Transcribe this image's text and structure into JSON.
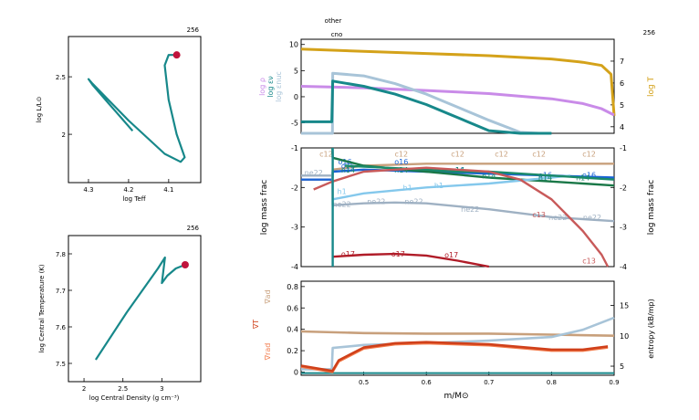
{
  "chart_data": [
    {
      "type": "line",
      "panel": "hr_diagram",
      "model_number": "256",
      "xlabel": "log Teff",
      "ylabel": "log L/L⊙",
      "xlim": [
        4.35,
        4.02
      ],
      "ylim": [
        1.58,
        2.85
      ],
      "x_ticks": [
        "4.3",
        "4.2",
        "4.1"
      ],
      "y_ticks": [
        "2",
        "2.5"
      ],
      "track_color": "#17888a",
      "marker_color": "#c0143c",
      "series": [
        {
          "x": [
            4.19,
            4.25,
            4.29,
            4.3,
            4.29,
            4.2,
            4.11,
            4.07,
            4.06,
            4.08,
            4.1,
            4.11,
            4.1,
            4.08
          ],
          "y": [
            2.03,
            2.27,
            2.43,
            2.48,
            2.44,
            2.12,
            1.83,
            1.76,
            1.8,
            2.0,
            2.3,
            2.6,
            2.69,
            2.69
          ]
        }
      ],
      "current_point": {
        "x": 4.08,
        "y": 2.69
      }
    },
    {
      "type": "line",
      "panel": "central_conditions",
      "model_number": "256",
      "xlabel": "log Central Density (g cm⁻³)",
      "ylabel": "log Central Temperature (K)",
      "xlim": [
        1.8,
        3.5
      ],
      "ylim": [
        7.45,
        7.85
      ],
      "x_ticks": [
        "2",
        "2.5",
        "3"
      ],
      "y_ticks": [
        "7.5",
        "7.6",
        "7.7",
        "7.8"
      ],
      "track_color": "#17888a",
      "marker_color": "#c0143c",
      "series": [
        {
          "x": [
            2.15,
            2.55,
            2.95,
            3.04,
            3.0,
            3.07,
            3.18,
            3.3
          ],
          "y": [
            7.51,
            7.64,
            7.76,
            7.79,
            7.72,
            7.74,
            7.76,
            7.77
          ]
        }
      ],
      "current_point": {
        "x": 3.3,
        "y": 7.77
      }
    },
    {
      "type": "line",
      "panel": "structure",
      "model_number": "256",
      "top_labels": [
        "other",
        "cno"
      ],
      "xlim": [
        0.4,
        0.9
      ],
      "ylim": [
        -7,
        11
      ],
      "y_ticks": [
        "-5",
        "0",
        "5",
        "10"
      ],
      "ylabel_left": [
        "log ρ",
        "log εν",
        "log εnuc"
      ],
      "ylabel_left_colors": [
        "#c98be8",
        "#17888a",
        "#a8c4d8"
      ],
      "y2lim": [
        3.7,
        8
      ],
      "y2_ticks": [
        "4",
        "5",
        "6",
        "7"
      ],
      "ylabel_right": "log T",
      "ylabel_right_color": "#d4a21a",
      "series": [
        {
          "name": "log T",
          "axis": "right",
          "color": "#d4a21a",
          "x": [
            0.4,
            0.5,
            0.6,
            0.7,
            0.8,
            0.85,
            0.88,
            0.895,
            0.9
          ],
          "y": [
            7.55,
            7.45,
            7.35,
            7.25,
            7.1,
            6.95,
            6.8,
            6.4,
            4.5
          ]
        },
        {
          "name": "log ρ",
          "axis": "left",
          "color": "#c98be8",
          "x": [
            0.4,
            0.5,
            0.6,
            0.7,
            0.8,
            0.85,
            0.88,
            0.9
          ],
          "y": [
            2.0,
            1.7,
            1.2,
            0.6,
            -0.4,
            -1.3,
            -2.3,
            -3.5
          ]
        },
        {
          "name": "log εnuc",
          "axis": "left",
          "color": "#a8c4d8",
          "x": [
            0.4,
            0.45,
            0.4505,
            0.5,
            0.55,
            0.6,
            0.65,
            0.7,
            0.75,
            0.78
          ],
          "y": [
            -8,
            -8,
            4.5,
            4.0,
            2.5,
            0.5,
            -2,
            -4.5,
            -6.8,
            -8
          ]
        },
        {
          "name": "log εν",
          "axis": "left",
          "color": "#17888a",
          "x": [
            0.4,
            0.449,
            0.4505,
            0.5,
            0.55,
            0.6,
            0.65,
            0.7,
            0.75,
            0.8
          ],
          "y": [
            -4.8,
            -4.8,
            3.0,
            2.0,
            0.5,
            -1.5,
            -4,
            -6.5,
            -7.8,
            -8
          ]
        }
      ]
    },
    {
      "type": "line",
      "panel": "abundances",
      "xlim": [
        0.4,
        0.9
      ],
      "ylim": [
        -4,
        -1
      ],
      "y_ticks": [
        "-4",
        "-3",
        "-2",
        "-1"
      ],
      "ylabel": "log mass frac",
      "ylabel_right": "log mass frac",
      "series": [
        {
          "name": "c12",
          "color": "#c8a07c",
          "x": [
            0.4,
            0.45,
            0.4505,
            0.5,
            0.6,
            0.7,
            0.8,
            0.9
          ],
          "y": [
            -1.8,
            -1.8,
            -1.55,
            -1.45,
            -1.4,
            -1.4,
            -1.4,
            -1.4
          ],
          "labels": [
            [
              0.44,
              -1.15
            ],
            [
              0.56,
              -1.15
            ],
            [
              0.65,
              -1.15
            ],
            [
              0.72,
              -1.15
            ],
            [
              0.78,
              -1.15
            ],
            [
              0.86,
              -1.15
            ]
          ]
        },
        {
          "name": "o16",
          "color": "#1a63d6",
          "x": [
            0.4,
            0.45,
            0.4505,
            0.5,
            0.6,
            0.7,
            0.8,
            0.9
          ],
          "y": [
            -1.8,
            -1.8,
            -1.6,
            -1.55,
            -1.6,
            -1.65,
            -1.7,
            -1.75
          ],
          "labels": [
            [
              0.47,
              -1.35
            ],
            [
              0.475,
              -1.45
            ],
            [
              0.56,
              -1.35
            ],
            [
              0.65,
              -1.55
            ],
            [
              0.79,
              -1.68
            ],
            [
              0.86,
              -1.68
            ]
          ]
        },
        {
          "name": "ne20",
          "color": "#1a7848",
          "x": [
            0.45,
            0.4505,
            0.5,
            0.6,
            0.7,
            0.8,
            0.9
          ],
          "y": [
            -1.0,
            -1.25,
            -1.45,
            -1.6,
            -1.75,
            -1.85,
            -1.95
          ],
          "labels": []
        },
        {
          "name": "ne22",
          "color": "#9fb1c3",
          "x": [
            0.4,
            0.45,
            0.4505,
            0.5,
            0.55,
            0.6,
            0.7,
            0.8,
            0.9
          ],
          "y": [
            -1.7,
            -1.7,
            -2.45,
            -2.4,
            -2.38,
            -2.4,
            -2.55,
            -2.75,
            -2.85
          ],
          "labels": [
            [
              0.42,
              -1.62
            ],
            [
              0.465,
              -2.42
            ],
            [
              0.52,
              -2.35
            ],
            [
              0.58,
              -2.35
            ],
            [
              0.67,
              -2.55
            ],
            [
              0.81,
              -2.75
            ],
            [
              0.865,
              -2.75
            ]
          ]
        },
        {
          "name": "h1",
          "color": "#84c8ec",
          "x": [
            0.4505,
            0.5,
            0.6,
            0.7,
            0.8,
            0.83
          ],
          "y": [
            -2.3,
            -2.15,
            -2.0,
            -1.9,
            -1.75,
            -1.7
          ],
          "labels": [
            [
              0.465,
              -2.1
            ],
            [
              0.57,
              -2.0
            ],
            [
              0.62,
              -1.95
            ]
          ]
        },
        {
          "name": "n14",
          "color": "#1a8a6a",
          "x": [
            0.47,
            0.6,
            0.65,
            0.7,
            0.8,
            0.9
          ],
          "y": [
            -1.45,
            -1.55,
            -1.6,
            -1.6,
            -1.7,
            -1.8
          ],
          "labels": [
            [
              0.475,
              -1.55
            ],
            [
              0.56,
              -1.55
            ],
            [
              0.65,
              -1.55
            ],
            [
              0.7,
              -1.7
            ],
            [
              0.79,
              -1.75
            ],
            [
              0.85,
              -1.75
            ]
          ]
        },
        {
          "name": "c13",
          "color": "#c85a5a",
          "x": [
            0.42,
            0.45,
            0.5,
            0.6,
            0.7,
            0.75,
            0.8,
            0.85,
            0.88,
            0.89
          ],
          "y": [
            -2.05,
            -1.85,
            -1.6,
            -1.5,
            -1.6,
            -1.8,
            -2.3,
            -3.1,
            -3.7,
            -4.0
          ],
          "labels": [
            [
              0.78,
              -2.68
            ],
            [
              0.86,
              -3.85
            ]
          ]
        },
        {
          "name": "o17",
          "color": "#b01c28",
          "x": [
            0.4505,
            0.5,
            0.55,
            0.6,
            0.65,
            0.7
          ],
          "y": [
            -3.75,
            -3.7,
            -3.68,
            -3.72,
            -3.85,
            -4.0
          ],
          "labels": [
            [
              0.475,
              -3.68
            ],
            [
              0.555,
              -3.68
            ],
            [
              0.64,
              -3.7
            ]
          ]
        },
        {
          "name": "teal_step",
          "color": "#17888a",
          "x": [
            0.4505,
            0.4505
          ],
          "y": [
            -4.0,
            -1.0
          ],
          "labels": []
        }
      ]
    },
    {
      "type": "line",
      "panel": "gradients",
      "xlim": [
        0.4,
        0.9
      ],
      "ylim": [
        -0.03,
        0.85
      ],
      "y_ticks": [
        "0",
        "0.2",
        "0.4",
        "0.6",
        "0.8"
      ],
      "xlabel": "m/M⊙",
      "x_ticks": [
        "0.5",
        "0.6",
        "0.7",
        "0.8",
        "0.9"
      ],
      "ylabel_left": [
        "∇T",
        "∇ad",
        "∇rad"
      ],
      "ylabel_left_colors": [
        "#d0401a",
        "#c8a07c",
        "#f27a4a"
      ],
      "y2lim": [
        3.5,
        19
      ],
      "y2_ticks": [
        "5",
        "10",
        "15"
      ],
      "ylabel_right": "entropy (kB/mp)",
      "series": [
        {
          "name": "∇ad",
          "color": "#c8a07c",
          "x": [
            0.4,
            0.5,
            0.6,
            0.7,
            0.8,
            0.9
          ],
          "y": [
            0.38,
            0.365,
            0.36,
            0.36,
            0.35,
            0.34
          ]
        },
        {
          "name": "entropy",
          "color": "#a8c4d8",
          "axis": "right",
          "x": [
            0.4,
            0.449,
            0.4505,
            0.5,
            0.6,
            0.7,
            0.8,
            0.85,
            0.9
          ],
          "y": [
            4.5,
            4.5,
            8.0,
            8.5,
            8.8,
            9.2,
            9.8,
            11.0,
            13.0
          ]
        },
        {
          "name": "∇rad",
          "color": "#f27a4a",
          "x": [
            0.4,
            0.45,
            0.46,
            0.5,
            0.55,
            0.6,
            0.7,
            0.8,
            0.85,
            0.89
          ],
          "y": [
            0.05,
            0.0,
            0.1,
            0.22,
            0.26,
            0.27,
            0.25,
            0.2,
            0.2,
            0.23
          ]
        },
        {
          "name": "∇T",
          "color": "#d0401a",
          "x": [
            0.4,
            0.45,
            0.46,
            0.5,
            0.55,
            0.6,
            0.7,
            0.8,
            0.85,
            0.89
          ],
          "y": [
            0.06,
            0.01,
            0.11,
            0.23,
            0.27,
            0.28,
            0.26,
            0.21,
            0.21,
            0.24
          ]
        }
      ]
    }
  ]
}
